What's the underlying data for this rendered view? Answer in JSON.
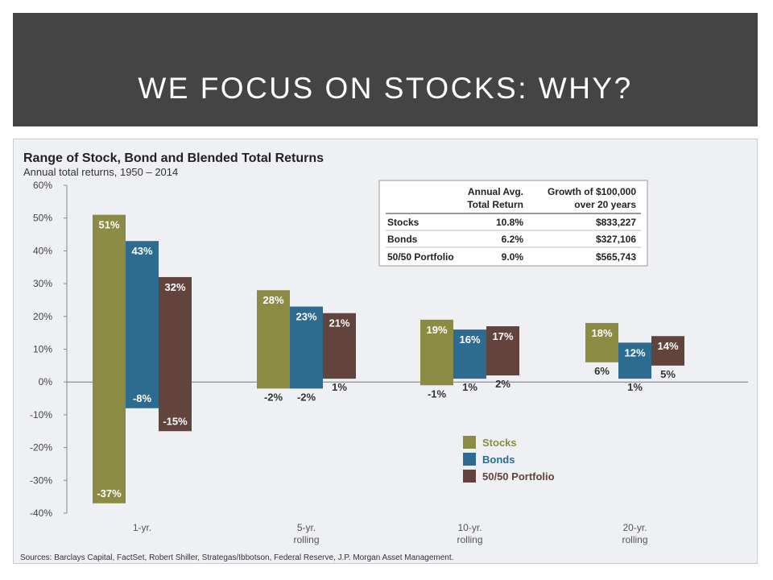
{
  "slide": {
    "title": "WE FOCUS ON STOCKS: WHY?"
  },
  "colors": {
    "stocks": "#8b8b44",
    "bonds": "#2e6b90",
    "portfolio": "#62443c",
    "banner": "#444444"
  },
  "chart_data": {
    "type": "bar",
    "title": "Range of Stock, Bond and Blended Total Returns",
    "subtitle": "Annual total returns, 1950 – 2014",
    "ylim": [
      -40,
      60
    ],
    "yticks": [
      "60%",
      "50%",
      "40%",
      "30%",
      "20%",
      "10%",
      "0%",
      "-10%",
      "-20%",
      "-30%",
      "-40%"
    ],
    "ytick_values": [
      60,
      50,
      40,
      30,
      20,
      10,
      0,
      -10,
      -20,
      -30,
      -40
    ],
    "categories": [
      {
        "line1": "1-yr.",
        "line2": ""
      },
      {
        "line1": "5-yr.",
        "line2": "rolling"
      },
      {
        "line1": "10-yr.",
        "line2": "rolling"
      },
      {
        "line1": "20-yr.",
        "line2": "rolling"
      }
    ],
    "series": [
      {
        "name": "Stocks",
        "high": [
          51,
          28,
          19,
          18
        ],
        "low": [
          -37,
          -2,
          -1,
          6
        ],
        "high_labels": [
          "51%",
          "28%",
          "19%",
          "18%"
        ],
        "low_labels": [
          "-37%",
          "-2%",
          "-1%",
          "6%"
        ]
      },
      {
        "name": "Bonds",
        "high": [
          43,
          23,
          16,
          12
        ],
        "low": [
          -8,
          -2,
          1,
          1
        ],
        "high_labels": [
          "43%",
          "23%",
          "16%",
          "12%"
        ],
        "low_labels": [
          "-8%",
          "-2%",
          "1%",
          "1%"
        ]
      },
      {
        "name": "50/50 Portfolio",
        "high": [
          32,
          21,
          17,
          14
        ],
        "low": [
          -15,
          1,
          2,
          5
        ],
        "high_labels": [
          "32%",
          "21%",
          "17%",
          "14%"
        ],
        "low_labels": [
          "-15%",
          "1%",
          "2%",
          "5%"
        ]
      }
    ],
    "legend": [
      "Stocks",
      "Bonds",
      "50/50 Portfolio"
    ],
    "legend_position": "bottom-right",
    "grid": false,
    "table": {
      "header_col2": [
        "Annual Avg.",
        "Total Return"
      ],
      "header_col3": [
        "Growth of $100,000",
        "over 20 years"
      ],
      "rows": [
        {
          "name": "Stocks",
          "ret": "10.8%",
          "growth": "$833,227"
        },
        {
          "name": "Bonds",
          "ret": "6.2%",
          "growth": "$327,106"
        },
        {
          "name": "50/50 Portfolio",
          "ret": "9.0%",
          "growth": "$565,743"
        }
      ]
    },
    "source": "Sources: Barclays Capital, FactSet, Robert Shiller, Strategas/Ibbotson, Federal Reserve, J.P. Morgan Asset Management."
  }
}
